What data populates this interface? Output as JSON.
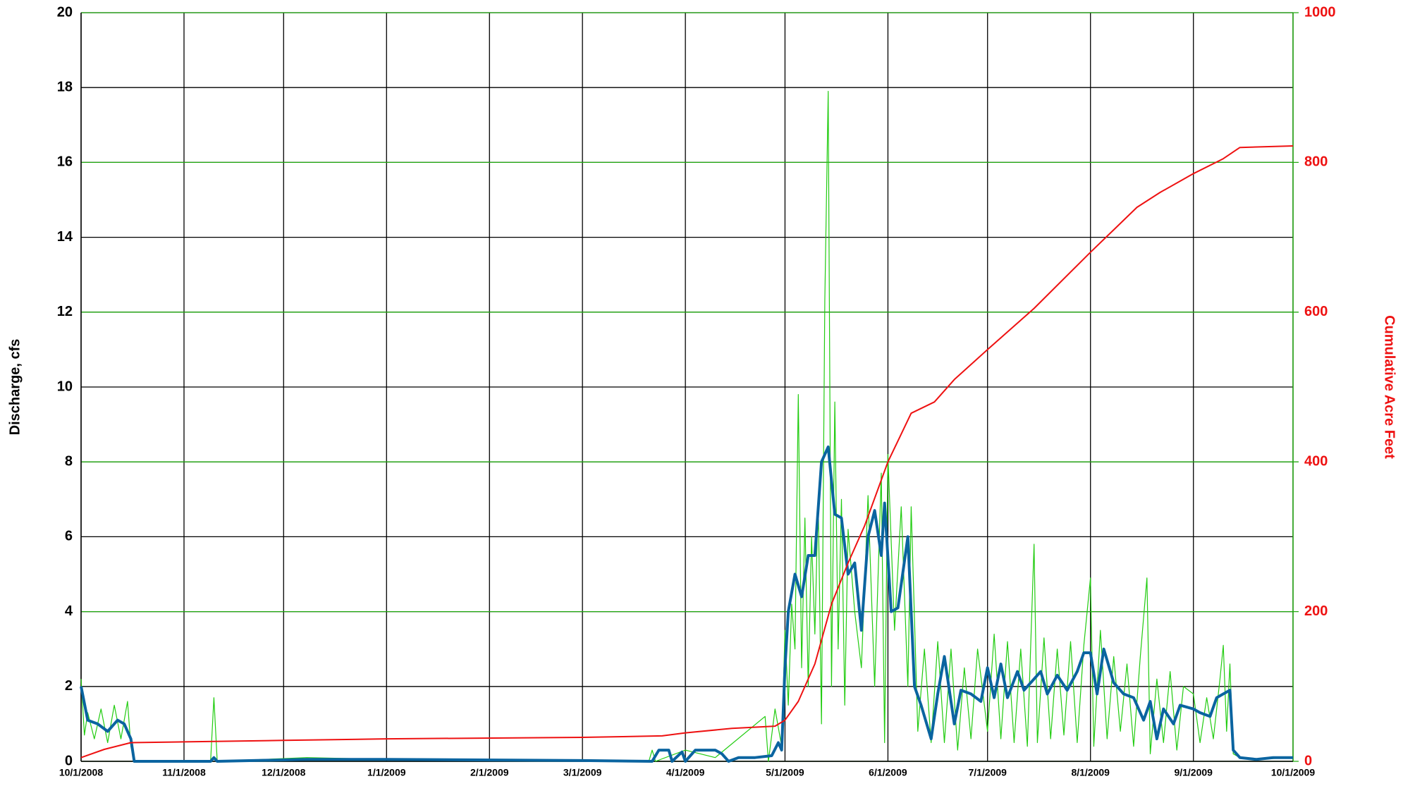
{
  "chart_data": {
    "type": "line",
    "ylabel": "Discharge, cfs",
    "y2label": "Cumulative Acre Feet",
    "xlim": [
      "2008-10-01",
      "2009-10-01"
    ],
    "xticks": [
      {
        "value": "2008-10-01",
        "label": "10/1/2008"
      },
      {
        "value": "2008-11-01",
        "label": "11/1/2008"
      },
      {
        "value": "2008-12-01",
        "label": "12/1/2008"
      },
      {
        "value": "2009-01-01",
        "label": "1/1/2009"
      },
      {
        "value": "2009-02-01",
        "label": "2/1/2009"
      },
      {
        "value": "2009-03-01",
        "label": "3/1/2009"
      },
      {
        "value": "2009-04-01",
        "label": "4/1/2009"
      },
      {
        "value": "2009-05-01",
        "label": "5/1/2009"
      },
      {
        "value": "2009-06-01",
        "label": "6/1/2009"
      },
      {
        "value": "2009-07-01",
        "label": "7/1/2009"
      },
      {
        "value": "2009-08-01",
        "label": "8/1/2009"
      },
      {
        "value": "2009-09-01",
        "label": "9/1/2009"
      },
      {
        "value": "2009-10-01",
        "label": "10/1/2009"
      }
    ],
    "ylim": [
      0,
      20
    ],
    "yticks": [
      0,
      2,
      4,
      6,
      8,
      10,
      12,
      14,
      16,
      18,
      20
    ],
    "y2lim": [
      0,
      1000
    ],
    "y2ticks": [
      0,
      200,
      400,
      600,
      800,
      1000
    ],
    "grid": true,
    "series": [
      {
        "color": "#22cc11",
        "width": 1.2,
        "x": [
          "2008-10-01",
          "2008-10-02",
          "2008-10-03",
          "2008-10-05",
          "2008-10-07",
          "2008-10-09",
          "2008-10-11",
          "2008-10-13",
          "2008-10-15",
          "2008-10-16",
          "2008-10-17",
          "2008-11-09",
          "2008-11-10",
          "2008-11-11",
          "2008-12-08",
          "2009-01-01",
          "2009-03-21",
          "2009-03-22",
          "2009-03-23",
          "2009-04-01",
          "2009-04-10",
          "2009-04-25",
          "2009-04-26",
          "2009-04-28",
          "2009-04-30",
          "2009-05-01",
          "2009-05-02",
          "2009-05-03",
          "2009-05-04",
          "2009-05-05",
          "2009-05-06",
          "2009-05-07",
          "2009-05-08",
          "2009-05-09",
          "2009-05-10",
          "2009-05-11",
          "2009-05-12",
          "2009-05-13",
          "2009-05-14",
          "2009-05-15",
          "2009-05-16",
          "2009-05-17",
          "2009-05-18",
          "2009-05-19",
          "2009-05-20",
          "2009-05-22",
          "2009-05-24",
          "2009-05-26",
          "2009-05-28",
          "2009-05-30",
          "2009-05-31",
          "2009-06-01",
          "2009-06-03",
          "2009-06-05",
          "2009-06-07",
          "2009-06-08",
          "2009-06-10",
          "2009-06-12",
          "2009-06-14",
          "2009-06-16",
          "2009-06-18",
          "2009-06-20",
          "2009-06-22",
          "2009-06-24",
          "2009-06-26",
          "2009-06-28",
          "2009-07-01",
          "2009-07-03",
          "2009-07-05",
          "2009-07-07",
          "2009-07-09",
          "2009-07-11",
          "2009-07-13",
          "2009-07-15",
          "2009-07-16",
          "2009-07-18",
          "2009-07-20",
          "2009-07-22",
          "2009-07-24",
          "2009-07-26",
          "2009-07-28",
          "2009-07-30",
          "2009-08-01",
          "2009-08-02",
          "2009-08-04",
          "2009-08-06",
          "2009-08-08",
          "2009-08-10",
          "2009-08-12",
          "2009-08-14",
          "2009-08-16",
          "2009-08-18",
          "2009-08-19",
          "2009-08-21",
          "2009-08-23",
          "2009-08-25",
          "2009-08-27",
          "2009-08-29",
          "2009-09-01",
          "2009-09-03",
          "2009-09-05",
          "2009-09-07",
          "2009-09-09",
          "2009-09-10",
          "2009-09-11",
          "2009-09-12",
          "2009-09-13",
          "2009-09-15",
          "2009-09-20",
          "2009-10-01"
        ],
        "values": [
          2.2,
          0.7,
          1.3,
          0.6,
          1.4,
          0.5,
          1.5,
          0.6,
          1.6,
          0.4,
          0.0,
          0.0,
          1.7,
          0.0,
          0.1,
          0.05,
          0.0,
          0.3,
          0.0,
          0.3,
          0.1,
          1.2,
          0.0,
          1.4,
          0.4,
          3.5,
          1.5,
          4.2,
          3.0,
          9.8,
          2.5,
          6.5,
          2.0,
          6.0,
          3.4,
          7.0,
          1.0,
          12.3,
          17.9,
          2.0,
          9.6,
          3.0,
          7.0,
          1.5,
          6.2,
          4.0,
          2.5,
          7.1,
          2.0,
          7.7,
          0.5,
          8.2,
          3.5,
          6.8,
          2.0,
          6.8,
          0.8,
          3.0,
          0.5,
          3.2,
          0.5,
          3.0,
          0.3,
          2.5,
          0.6,
          3.0,
          0.8,
          3.4,
          0.6,
          3.2,
          0.5,
          3.0,
          0.4,
          5.8,
          0.5,
          3.3,
          0.6,
          3.0,
          0.7,
          3.2,
          0.5,
          3.1,
          4.9,
          0.4,
          3.5,
          0.6,
          2.8,
          0.8,
          2.6,
          0.4,
          2.8,
          4.9,
          0.2,
          2.2,
          0.5,
          2.4,
          0.3,
          2.0,
          1.8,
          0.5,
          1.7,
          0.6,
          2.2,
          3.1,
          0.8,
          2.6,
          0.2,
          0.1,
          0.05,
          0.1
        ]
      },
      {
        "color": "#0a64a0",
        "width": 4,
        "x": [
          "2008-10-01",
          "2008-10-03",
          "2008-10-06",
          "2008-10-09",
          "2008-10-12",
          "2008-10-14",
          "2008-10-16",
          "2008-10-17",
          "2008-11-09",
          "2008-11-10",
          "2008-11-11",
          "2008-12-08",
          "2009-01-01",
          "2009-03-01",
          "2009-03-22",
          "2009-03-24",
          "2009-03-27",
          "2009-03-28",
          "2009-03-31",
          "2009-04-01",
          "2009-04-04",
          "2009-04-10",
          "2009-04-12",
          "2009-04-14",
          "2009-04-17",
          "2009-04-22",
          "2009-04-27",
          "2009-04-29",
          "2009-04-30",
          "2009-05-01",
          "2009-05-02",
          "2009-05-04",
          "2009-05-06",
          "2009-05-08",
          "2009-05-10",
          "2009-05-12",
          "2009-05-14",
          "2009-05-16",
          "2009-05-18",
          "2009-05-20",
          "2009-05-22",
          "2009-05-24",
          "2009-05-26",
          "2009-05-28",
          "2009-05-30",
          "2009-05-31",
          "2009-06-02",
          "2009-06-04",
          "2009-06-07",
          "2009-06-09",
          "2009-06-11",
          "2009-06-14",
          "2009-06-16",
          "2009-06-18",
          "2009-06-21",
          "2009-06-23",
          "2009-06-26",
          "2009-06-29",
          "2009-07-01",
          "2009-07-03",
          "2009-07-05",
          "2009-07-07",
          "2009-07-10",
          "2009-07-12",
          "2009-07-15",
          "2009-07-17",
          "2009-07-19",
          "2009-07-22",
          "2009-07-25",
          "2009-07-28",
          "2009-07-30",
          "2009-08-01",
          "2009-08-03",
          "2009-08-05",
          "2009-08-08",
          "2009-08-11",
          "2009-08-14",
          "2009-08-17",
          "2009-08-19",
          "2009-08-21",
          "2009-08-23",
          "2009-08-26",
          "2009-08-28",
          "2009-09-01",
          "2009-09-03",
          "2009-09-06",
          "2009-09-08",
          "2009-09-10",
          "2009-09-12",
          "2009-09-13",
          "2009-09-15",
          "2009-09-20",
          "2009-09-25",
          "2009-10-01"
        ],
        "values": [
          2.0,
          1.1,
          1.0,
          0.8,
          1.1,
          1.0,
          0.6,
          0.0,
          0.0,
          0.1,
          0.0,
          0.05,
          0.05,
          0.02,
          0.0,
          0.3,
          0.3,
          0.0,
          0.25,
          0.0,
          0.3,
          0.3,
          0.2,
          0.0,
          0.1,
          0.1,
          0.15,
          0.5,
          0.3,
          2.5,
          4.0,
          5.0,
          4.4,
          5.5,
          5.5,
          8.0,
          8.4,
          6.6,
          6.5,
          5.0,
          5.3,
          3.5,
          6.0,
          6.7,
          5.5,
          6.9,
          4.0,
          4.1,
          6.0,
          2.0,
          1.5,
          0.6,
          1.8,
          2.8,
          1.0,
          1.9,
          1.8,
          1.6,
          2.5,
          1.7,
          2.6,
          1.7,
          2.4,
          1.9,
          2.2,
          2.4,
          1.8,
          2.3,
          1.9,
          2.4,
          2.9,
          2.9,
          1.8,
          3.0,
          2.1,
          1.8,
          1.7,
          1.1,
          1.6,
          0.6,
          1.4,
          1.0,
          1.5,
          1.4,
          1.3,
          1.2,
          1.7,
          1.8,
          1.9,
          0.3,
          0.1,
          0.05,
          0.1,
          0.1
        ]
      },
      {
        "color": "#ee1111",
        "width": 2,
        "axis": "y2",
        "x": [
          "2008-10-01",
          "2008-10-08",
          "2008-10-16",
          "2008-11-01",
          "2008-12-01",
          "2009-01-01",
          "2009-03-01",
          "2009-03-25",
          "2009-04-01",
          "2009-04-15",
          "2009-04-28",
          "2009-05-01",
          "2009-05-05",
          "2009-05-10",
          "2009-05-15",
          "2009-05-20",
          "2009-05-25",
          "2009-06-01",
          "2009-06-08",
          "2009-06-15",
          "2009-06-21",
          "2009-07-01",
          "2009-07-15",
          "2009-08-01",
          "2009-08-08",
          "2009-08-15",
          "2009-08-22",
          "2009-09-01",
          "2009-09-10",
          "2009-09-15",
          "2009-10-01"
        ],
        "values": [
          5,
          16,
          25,
          26,
          28,
          30,
          32,
          34,
          38,
          44,
          47,
          55,
          80,
          130,
          210,
          265,
          315,
          400,
          465,
          480,
          510,
          550,
          605,
          680,
          710,
          740,
          760,
          785,
          805,
          820,
          822
        ]
      }
    ]
  }
}
